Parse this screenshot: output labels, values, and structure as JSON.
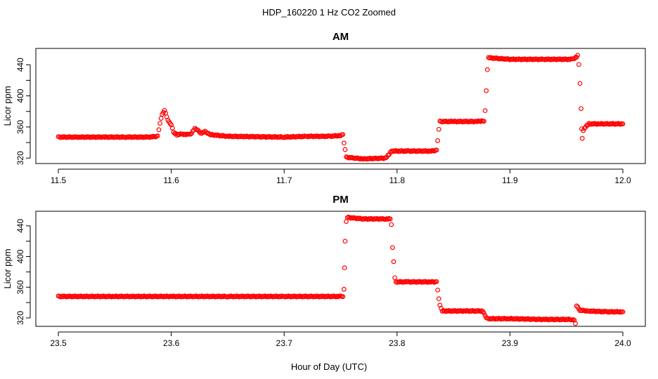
{
  "figure": {
    "title": "HDP_160220  1 Hz CO2 Zoomed",
    "xlabel": "Hour of Day (UTC)"
  },
  "chart_data": [
    {
      "type": "scatter",
      "title": "AM",
      "ylabel": "Licor ppm",
      "xlim": [
        11.5,
        12.0
      ],
      "ylim": [
        313,
        461
      ],
      "x_ticks": [
        11.5,
        11.6,
        11.7,
        11.8,
        11.9,
        12.0
      ],
      "x_tick_labels": [
        "11.5",
        "11.6",
        "11.7",
        "11.8",
        "11.9",
        "12.0"
      ],
      "y_ticks": [
        320,
        360,
        400,
        440
      ],
      "y_tick_labels": [
        "320",
        "360",
        "400",
        "440"
      ],
      "series": [
        {
          "color": "#ff0000",
          "marker": "open-circle",
          "points": [
            [
              11.5,
              347
            ],
            [
              11.52,
              347
            ],
            [
              11.54,
              347
            ],
            [
              11.56,
              347
            ],
            [
              11.58,
              347
            ],
            [
              11.588,
              348
            ],
            [
              11.59,
              365
            ],
            [
              11.592,
              376
            ],
            [
              11.594,
              382
            ],
            [
              11.596,
              373
            ],
            [
              11.598,
              366
            ],
            [
              11.6,
              363
            ],
            [
              11.602,
              353
            ],
            [
              11.605,
              350
            ],
            [
              11.61,
              351
            ],
            [
              11.615,
              350
            ],
            [
              11.618,
              352
            ],
            [
              11.621,
              358
            ],
            [
              11.623,
              357
            ],
            [
              11.626,
              352
            ],
            [
              11.63,
              354
            ],
            [
              11.635,
              350
            ],
            [
              11.65,
              348
            ],
            [
              11.7,
              347
            ],
            [
              11.72,
              348
            ],
            [
              11.74,
              348
            ],
            [
              11.75,
              349
            ],
            [
              11.752,
              350
            ],
            [
              11.753,
              340
            ],
            [
              11.754,
              331
            ],
            [
              11.755,
              321
            ],
            [
              11.77,
              319
            ],
            [
              11.79,
              320
            ],
            [
              11.793,
              325
            ],
            [
              11.795,
              329
            ],
            [
              11.81,
              329
            ],
            [
              11.83,
              329
            ],
            [
              11.835,
              330
            ],
            [
              11.836,
              343
            ],
            [
              11.837,
              357
            ],
            [
              11.838,
              367
            ],
            [
              11.85,
              367
            ],
            [
              11.87,
              367
            ],
            [
              11.877,
              368
            ],
            [
              11.878,
              381
            ],
            [
              11.879,
              406
            ],
            [
              11.88,
              434
            ],
            [
              11.881,
              449
            ],
            [
              11.9,
              447
            ],
            [
              11.93,
              447
            ],
            [
              11.955,
              447
            ],
            [
              11.959,
              450
            ],
            [
              11.96,
              452
            ],
            [
              11.961,
              441
            ],
            [
              11.962,
              416
            ],
            [
              11.963,
              383
            ],
            [
              11.9635,
              358
            ],
            [
              11.964,
              345
            ],
            [
              11.965,
              356
            ],
            [
              11.968,
              362
            ],
            [
              11.97,
              364
            ],
            [
              11.98,
              364
            ],
            [
              12.0,
              364
            ]
          ]
        }
      ]
    },
    {
      "type": "scatter",
      "title": "PM",
      "ylabel": "Licor ppm",
      "xlim": [
        23.5,
        24.0
      ],
      "ylim": [
        309,
        459
      ],
      "x_ticks": [
        23.5,
        23.6,
        23.7,
        23.8,
        23.9,
        24.0
      ],
      "x_tick_labels": [
        "23.5",
        "23.6",
        "23.7",
        "23.8",
        "23.9",
        "24.0"
      ],
      "y_ticks": [
        320,
        360,
        400,
        440
      ],
      "y_tick_labels": [
        "320",
        "360",
        "400",
        "440"
      ],
      "series": [
        {
          "color": "#ff0000",
          "marker": "open-circle",
          "points": [
            [
              23.5,
              348
            ],
            [
              23.55,
              348
            ],
            [
              23.6,
              348
            ],
            [
              23.65,
              348
            ],
            [
              23.7,
              348
            ],
            [
              23.75,
              348
            ],
            [
              23.752,
              348
            ],
            [
              23.753,
              357
            ],
            [
              23.7535,
              386
            ],
            [
              23.754,
              420
            ],
            [
              23.755,
              445
            ],
            [
              23.756,
              451
            ],
            [
              23.77,
              449
            ],
            [
              23.79,
              449
            ],
            [
              23.794,
              449
            ],
            [
              23.795,
              441
            ],
            [
              23.796,
              412
            ],
            [
              23.797,
              393
            ],
            [
              23.798,
              373
            ],
            [
              23.799,
              367
            ],
            [
              23.81,
              367
            ],
            [
              23.83,
              367
            ],
            [
              23.835,
              367
            ],
            [
              23.836,
              357
            ],
            [
              23.837,
              345
            ],
            [
              23.838,
              336
            ],
            [
              23.84,
              329
            ],
            [
              23.86,
              329
            ],
            [
              23.876,
              329
            ],
            [
              23.878,
              323
            ],
            [
              23.88,
              319
            ],
            [
              23.9,
              319
            ],
            [
              23.93,
              318
            ],
            [
              23.955,
              318
            ],
            [
              23.957,
              317
            ],
            [
              23.958,
              312
            ],
            [
              23.959,
              336
            ],
            [
              23.96,
              334
            ],
            [
              23.962,
              330
            ],
            [
              23.97,
              329
            ],
            [
              23.985,
              328
            ],
            [
              24.0,
              328
            ]
          ]
        }
      ]
    }
  ]
}
